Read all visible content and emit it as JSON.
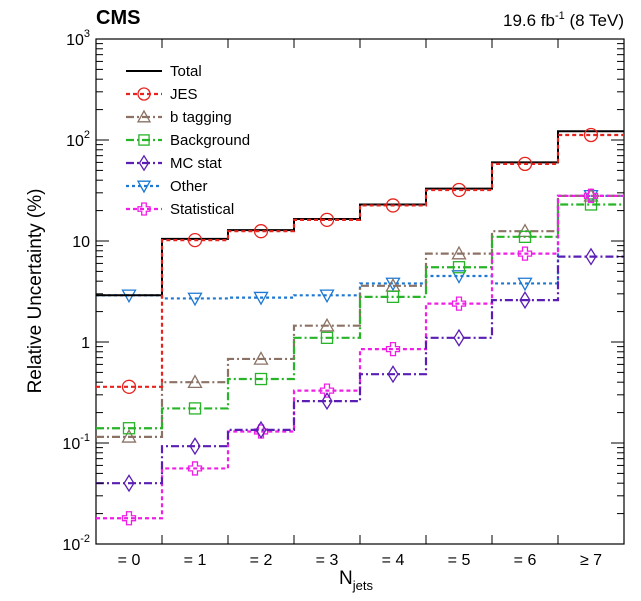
{
  "header": {
    "experiment": "CMS",
    "lumi_value": "19.6 fb",
    "lumi_exp": "-1",
    "lumi_energy": " (8 TeV)"
  },
  "chart_data": {
    "type": "line",
    "xlabel_main": "N",
    "xlabel_sub": "jets",
    "ylabel": "Relative Uncertainty (%)",
    "yscale": "log",
    "ylim": [
      0.01,
      1000
    ],
    "y_ticks": [
      {
        "value": 0.01,
        "base": "10",
        "exp": "-2"
      },
      {
        "value": 0.1,
        "base": "10",
        "exp": "-1"
      },
      {
        "value": 1,
        "base": "1",
        "exp": ""
      },
      {
        "value": 10,
        "base": "10",
        "exp": ""
      },
      {
        "value": 100,
        "base": "10",
        "exp": "2"
      },
      {
        "value": 1000,
        "base": "10",
        "exp": "3"
      }
    ],
    "categories": [
      "= 0",
      "= 1",
      "= 2",
      "= 3",
      "= 4",
      "= 5",
      "= 6",
      "≥ 7"
    ],
    "legend_position": "top-left",
    "grid": false,
    "series": [
      {
        "name": "Total",
        "color": "#000000",
        "dash": "",
        "marker": "none",
        "values": [
          2.9,
          10.5,
          12.8,
          16.5,
          23,
          33,
          60,
          122
        ]
      },
      {
        "name": "JES",
        "color": "#e8231e",
        "dash": "4,3",
        "marker": "circle",
        "values": [
          0.36,
          10.2,
          12.5,
          16.2,
          22.5,
          32,
          58,
          112
        ]
      },
      {
        "name": "b tagging",
        "color": "#8b7265",
        "dash": "8,3,2,3",
        "marker": "triangle-up",
        "values": [
          0.115,
          0.4,
          0.68,
          1.45,
          3.6,
          7.5,
          12.5,
          28
        ]
      },
      {
        "name": "Background",
        "color": "#28b428",
        "dash": "8,3,2,3",
        "marker": "square",
        "values": [
          0.14,
          0.22,
          0.43,
          1.1,
          2.8,
          5.5,
          11,
          23
        ]
      },
      {
        "name": "MC stat",
        "color": "#5a1eb4",
        "dash": "8,3,2,3",
        "marker": "diamond",
        "values": [
          0.04,
          0.093,
          0.135,
          0.26,
          0.48,
          1.1,
          2.6,
          7
        ]
      },
      {
        "name": "Other",
        "color": "#1e78d2",
        "dash": "3,3",
        "marker": "triangle-down",
        "values": [
          2.9,
          2.7,
          2.75,
          2.9,
          3.8,
          4.5,
          3.8,
          28
        ]
      },
      {
        "name": "Statistical",
        "color": "#f01ee6",
        "dash": "4,3",
        "marker": "cross",
        "values": [
          0.018,
          0.056,
          0.13,
          0.33,
          0.85,
          2.4,
          7.5,
          28
        ]
      }
    ]
  }
}
